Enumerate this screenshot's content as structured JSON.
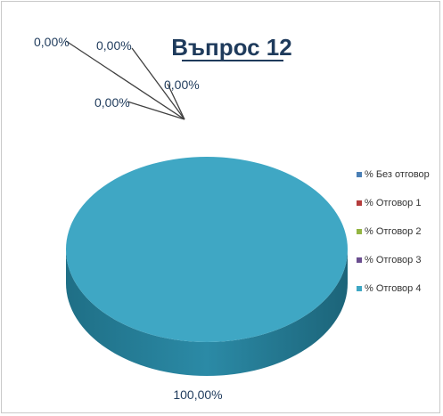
{
  "chart_data": {
    "type": "pie",
    "title": "Въпрос 12",
    "categories": [
      "% Без отговор",
      "% Отговор 1",
      "% Отговор 2",
      "% Отговор 3",
      "% Отговор 4"
    ],
    "values": [
      0,
      0,
      0,
      0,
      100
    ],
    "data_labels": [
      "0,00%",
      "0,00%",
      "0,00%",
      "0,00%",
      "100,00%"
    ],
    "colors": [
      "#4a7fb5",
      "#b43c3c",
      "#93b542",
      "#6a4d8f",
      "#3fa7c4"
    ],
    "legend_position": "right",
    "style": "3d"
  }
}
